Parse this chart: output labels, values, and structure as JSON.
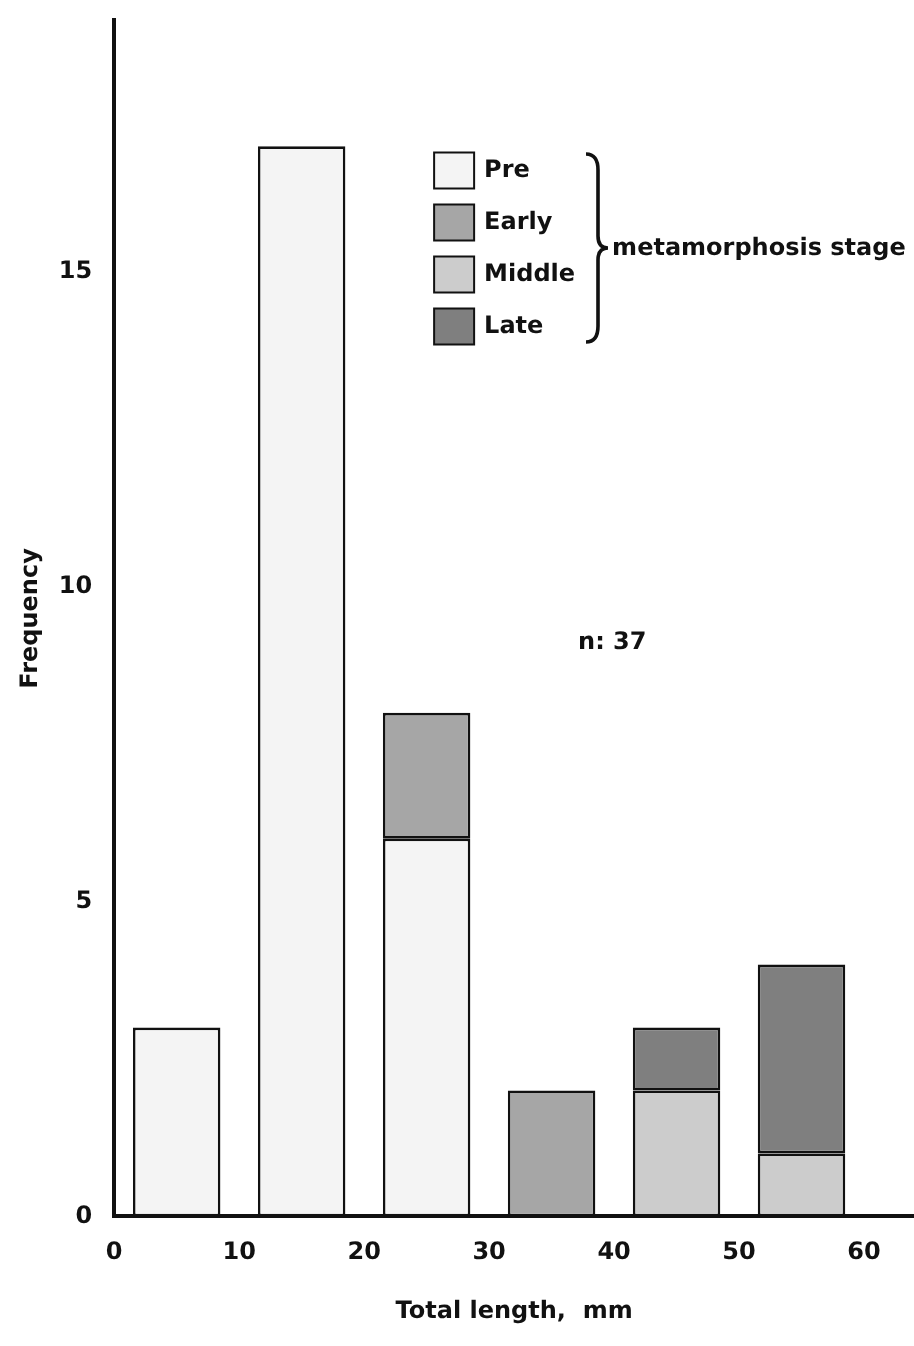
{
  "chart_data": {
    "type": "bar",
    "stacked": true,
    "xlabel": "Total length,  mm",
    "ylabel": "Frequency",
    "legend_title": "metamorphosis stage",
    "legend": "top right",
    "grid": false,
    "x": [
      5,
      15,
      25,
      35,
      45,
      55
    ],
    "xlim": [
      0,
      64
    ],
    "xticks": [
      0,
      10,
      20,
      30,
      40,
      50,
      60
    ],
    "ylim": [
      0,
      19
    ],
    "yticks": [
      0,
      5,
      10,
      15
    ],
    "series": [
      {
        "name": "Pre",
        "color": "#f4f4f4",
        "values": [
          3,
          17,
          6,
          0,
          0,
          0
        ]
      },
      {
        "name": "Early",
        "color": "#a6a6a6",
        "values": [
          0,
          0,
          2,
          2,
          0,
          0
        ]
      },
      {
        "name": "Middle",
        "color": "#cccccc",
        "values": [
          0,
          0,
          0,
          0,
          2,
          1
        ]
      },
      {
        "name": "Late",
        "color": "#7f7f7f",
        "values": [
          0,
          0,
          0,
          0,
          1,
          3
        ]
      }
    ],
    "annotations": [
      "n: 37"
    ]
  }
}
